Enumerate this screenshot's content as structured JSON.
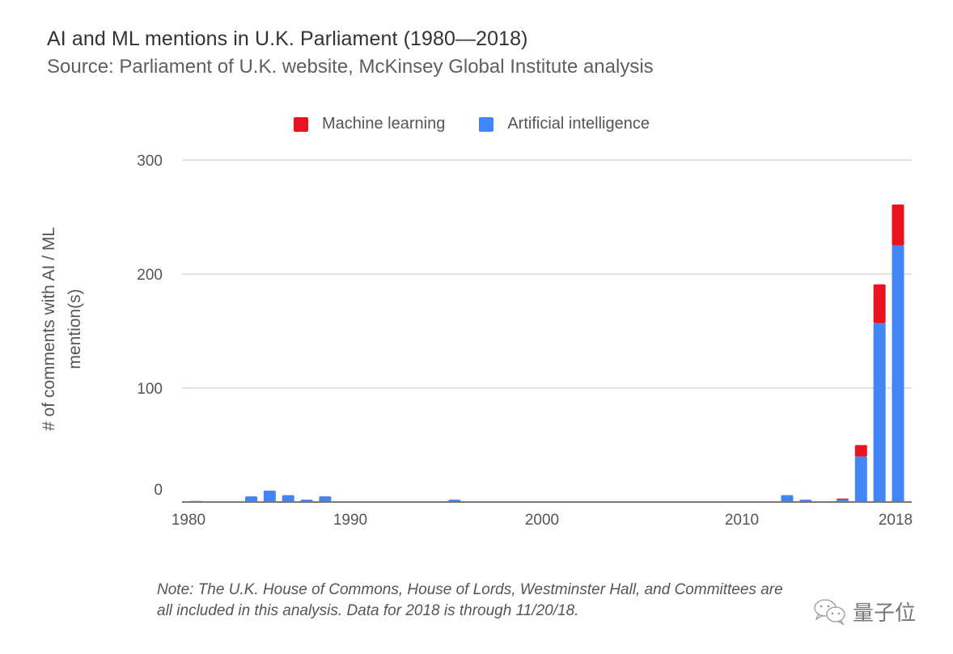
{
  "chart_data": {
    "type": "bar",
    "stacked": true,
    "title": "AI and ML mentions in U.K. Parliament (1980—2018)",
    "subtitle": "Source: Parliament of U.K. website, McKinsey Global Institute analysis",
    "xlabel": "",
    "ylabel": "# of comments with AI / ML mention(s)",
    "ylabel_lines": [
      "# of comments with AI / ML",
      "mention(s)"
    ],
    "xlim": [
      1980,
      2018
    ],
    "ylim": [
      0,
      300
    ],
    "y_ticks": [
      0,
      100,
      200,
      300
    ],
    "y_tick_labels": [
      "0",
      "100",
      "200",
      "300"
    ],
    "x_tick_labels": [
      "1980",
      "1990",
      "2000",
      "2010",
      "2018"
    ],
    "grid": true,
    "legend_position": "top",
    "x": [
      1980,
      1981,
      1982,
      1983,
      1984,
      1985,
      1986,
      1987,
      1988,
      1989,
      1990,
      1991,
      1992,
      1993,
      1994,
      1995,
      1996,
      1997,
      1998,
      1999,
      2000,
      2001,
      2002,
      2003,
      2004,
      2005,
      2006,
      2007,
      2008,
      2009,
      2010,
      2011,
      2012,
      2013,
      2014,
      2015,
      2016,
      2017,
      2018
    ],
    "series": [
      {
        "name": "Artificial intelligence",
        "color": "#4285f4",
        "values": [
          1,
          0,
          0,
          5,
          10,
          6,
          2,
          5,
          0,
          0,
          0.5,
          0,
          0,
          0,
          2,
          0,
          0,
          0,
          0,
          0,
          0.5,
          0,
          0,
          0.5,
          0,
          0,
          0,
          0.5,
          0,
          0,
          0.5,
          0,
          6,
          2,
          0,
          2,
          40,
          157,
          225
        ]
      },
      {
        "name": "Machine learning",
        "color": "#e8131f",
        "values": [
          0,
          0,
          0,
          0,
          0,
          0,
          0,
          0,
          0,
          0,
          0,
          0,
          0,
          0,
          0,
          0,
          0,
          0,
          0,
          0,
          0,
          0,
          0,
          0,
          0,
          0,
          0,
          0,
          0,
          0,
          0,
          0,
          0,
          0,
          0,
          1,
          10,
          34,
          36
        ]
      }
    ],
    "legend": [
      {
        "label": "Machine learning",
        "color": "#e8131f"
      },
      {
        "label": "Artificial intelligence",
        "color": "#4285f4"
      }
    ]
  },
  "note": {
    "line1": "Note: The U.K. House of Commons, House of Lords, Westminster Hall, and Committees are",
    "line2": "all included in this analysis. Data for 2018 is through 11/20/18."
  },
  "watermark": {
    "icon": "wechat-icon",
    "text": "量子位"
  }
}
